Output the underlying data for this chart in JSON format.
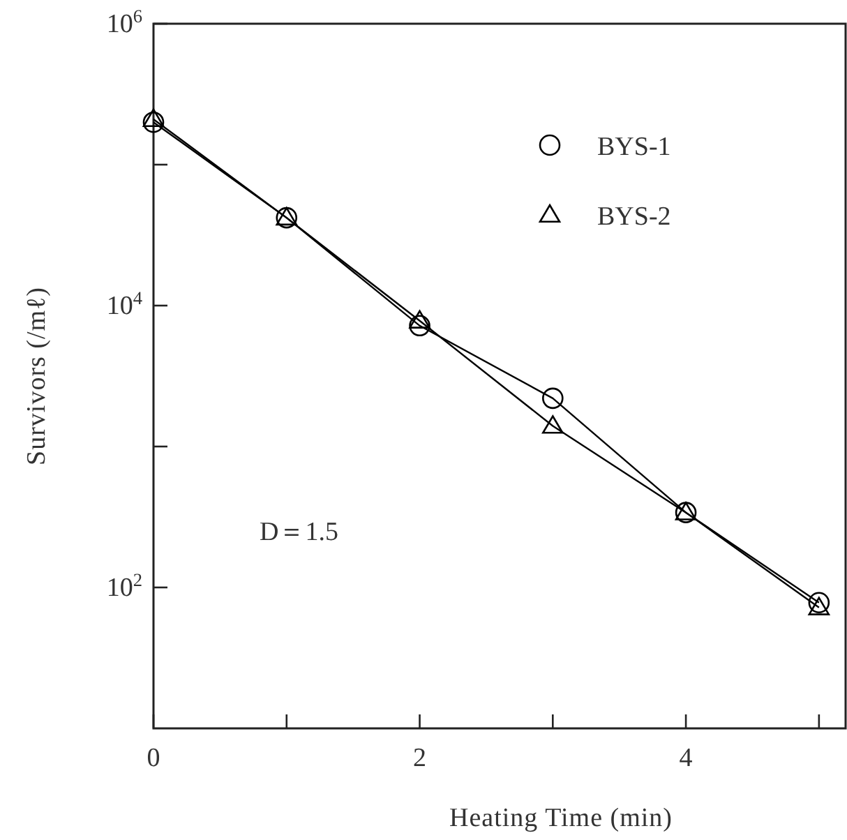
{
  "chart_data": {
    "type": "line",
    "xlabel": "Heating Time (min)",
    "ylabel": "Survivors (/mℓ)",
    "log": "y",
    "xlim": [
      0,
      5.2
    ],
    "xticks": [
      0,
      {
        "value": 1,
        "label": null
      },
      2,
      {
        "value": 3,
        "label": null
      },
      4,
      {
        "value": 5,
        "label": null
      }
    ],
    "ylim": [
      10,
      1000000
    ],
    "yticks": [
      {
        "value": 100,
        "label": "10$^{2}$"
      },
      {
        "value": 1000,
        "label": null
      },
      {
        "value": 10000,
        "label": "10$^{4}$"
      },
      {
        "value": 100000,
        "label": null
      },
      {
        "value": 1000000,
        "label": "10$^{6}$"
      }
    ],
    "x": [
      0,
      1,
      2,
      3,
      4,
      5
    ],
    "legend": "top right",
    "grid": false,
    "line_style": "solid",
    "annotations": [
      "D＝1.5"
    ],
    "series": [
      {
        "name": "BYS-1",
        "color": "#000000",
        "marker": "circle",
        "values": [
          200000,
          42000,
          7200,
          2200,
          340,
          78
        ]
      },
      {
        "name": "BYS-2",
        "color": "#000000",
        "marker": "triangle",
        "values": [
          210000,
          42000,
          7800,
          1400,
          340,
          72
        ]
      }
    ]
  }
}
